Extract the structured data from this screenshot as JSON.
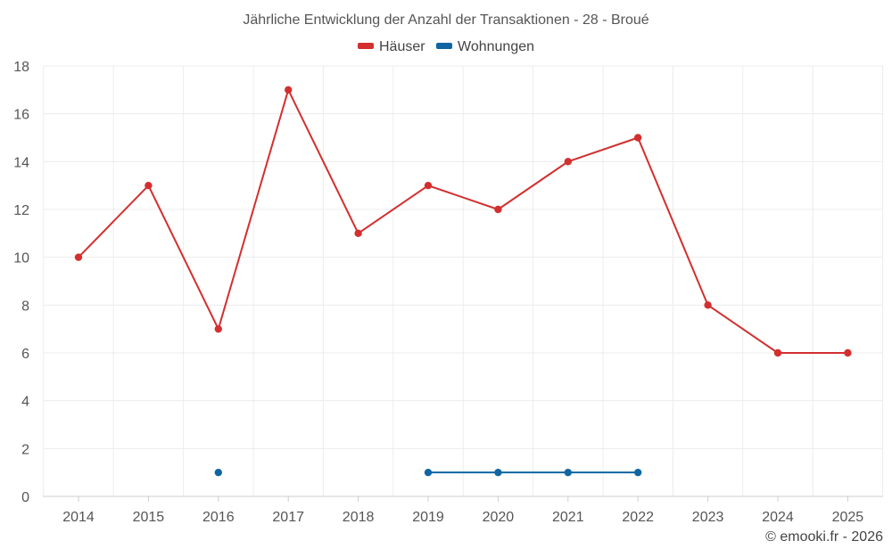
{
  "chart_data": {
    "type": "line",
    "title": "Jährliche Entwicklung der Anzahl der Transaktionen - 28 - Broué",
    "categories": [
      "2014",
      "2015",
      "2016",
      "2017",
      "2018",
      "2019",
      "2020",
      "2021",
      "2022",
      "2023",
      "2024",
      "2025"
    ],
    "ylim": [
      0,
      18
    ],
    "yticks": [
      0,
      2,
      4,
      6,
      8,
      10,
      12,
      14,
      16,
      18
    ],
    "grid": true,
    "legend_position": "top-center",
    "series": [
      {
        "name": "Häuser",
        "color": "#d32f2f",
        "values": [
          10,
          13,
          7,
          17,
          11,
          13,
          12,
          14,
          15,
          8,
          6,
          6
        ]
      },
      {
        "name": "Wohnungen",
        "color": "#0f66a3",
        "values": [
          null,
          null,
          1,
          null,
          null,
          1,
          1,
          1,
          1,
          null,
          null,
          null
        ]
      }
    ],
    "xlabel": "",
    "ylabel": ""
  },
  "legend": {
    "items": [
      {
        "label": "Häuser",
        "color": "#d32f2f"
      },
      {
        "label": "Wohnungen",
        "color": "#0f66a3"
      }
    ]
  },
  "footer": {
    "copyright": "© emooki.fr - 2026"
  }
}
